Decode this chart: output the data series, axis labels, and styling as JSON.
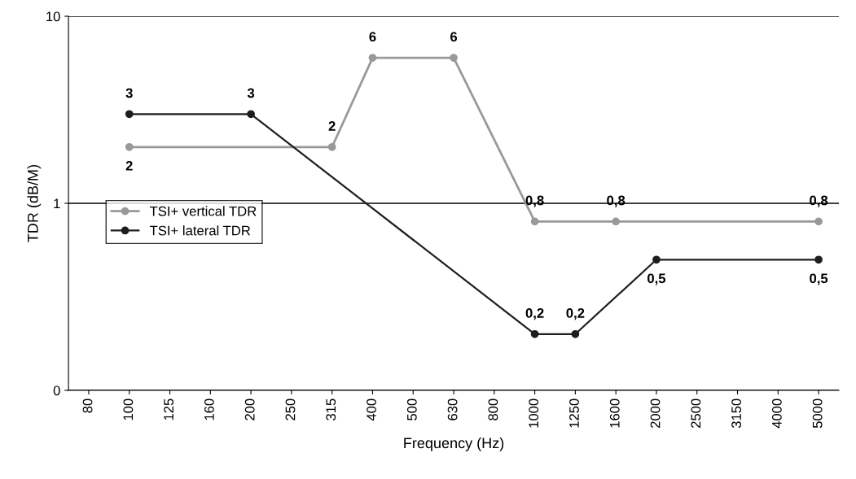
{
  "chart_data": {
    "type": "line",
    "xlabel": "Frequency (Hz)",
    "ylabel": "TDR (dB/M)",
    "categories": [
      "80",
      "100",
      "125",
      "160",
      "200",
      "250",
      "315",
      "400",
      "500",
      "630",
      "800",
      "1000",
      "1250",
      "1600",
      "2000",
      "2500",
      "3150",
      "4000",
      "5000"
    ],
    "log": "y",
    "ylim": [
      0.1,
      10
    ],
    "yticks": [
      {
        "value": 0.1,
        "label": "0"
      },
      1,
      10
    ],
    "grid": "y",
    "legend": "left",
    "marker": "circle",
    "line_style": "solid",
    "series": [
      {
        "name": "TSI+ vertical TDR",
        "color": "#999999",
        "values": [
          null,
          2,
          null,
          null,
          null,
          null,
          2,
          6,
          null,
          6,
          null,
          0.8,
          null,
          0.8,
          null,
          null,
          null,
          null,
          0.8
        ],
        "value_labels": [
          null,
          "2",
          null,
          null,
          null,
          null,
          "2",
          "6",
          null,
          "6",
          null,
          "0,8",
          null,
          "0,8",
          null,
          null,
          null,
          null,
          "0,8"
        ]
      },
      {
        "name": "TSI+ lateral TDR",
        "color": "#1e1e1e",
        "values": [
          null,
          3,
          null,
          null,
          3,
          null,
          null,
          null,
          null,
          null,
          null,
          0.2,
          0.2,
          null,
          0.5,
          null,
          null,
          null,
          0.5
        ],
        "value_labels": [
          null,
          "3",
          null,
          null,
          "3",
          null,
          null,
          null,
          null,
          null,
          null,
          "0,2",
          "0,2",
          null,
          "0,5",
          null,
          null,
          null,
          "0,5"
        ]
      }
    ]
  }
}
